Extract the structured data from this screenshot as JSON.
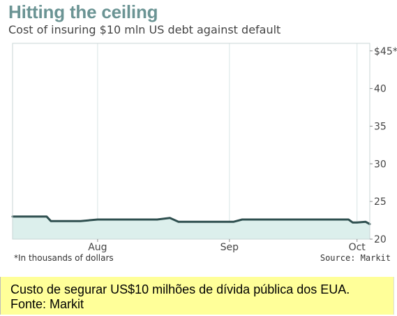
{
  "header": {
    "title": "Hitting the ceiling",
    "subtitle": "Cost of insuring $10 mln US debt against default"
  },
  "footer": {
    "footnote": "*In thousands of dollars",
    "source": "Source: Markit"
  },
  "caption": {
    "line1": "Custo de segurar US$10 milhões de dívida pública dos EUA.",
    "line2": "Fonte: Markit"
  },
  "colors": {
    "line": "#2e4f4f",
    "fill": "#dcefec",
    "title": "#6b9494",
    "grid": "#d8e4e4",
    "caption_bg": "#ffff99"
  },
  "chart_data": {
    "type": "area",
    "title": "Hitting the ceiling",
    "subtitle": "Cost of insuring $10 mln US debt against default",
    "ylim": [
      20,
      46
    ],
    "yticks": [
      {
        "value": 45,
        "label": "$45*"
      },
      {
        "value": 40,
        "label": "40"
      },
      {
        "value": 35,
        "label": "35"
      },
      {
        "value": 30,
        "label": "30"
      },
      {
        "value": 25,
        "label": "25"
      },
      {
        "value": 20,
        "label": "20"
      }
    ],
    "xlim": [
      "2011-07-12",
      "2011-10-04"
    ],
    "xticks": [
      {
        "date": "2011-08-01",
        "label": "Aug"
      },
      {
        "date": "2011-09-01",
        "label": "Sep"
      },
      {
        "date": "2011-10-01",
        "label": "Oct"
      }
    ],
    "grid": true,
    "series": [
      {
        "points": [
          {
            "x": "2011-07-12",
            "y": 23.0
          },
          {
            "x": "2011-07-15",
            "y": 23.0
          },
          {
            "x": "2011-07-20",
            "y": 23.0
          },
          {
            "x": "2011-07-21",
            "y": 22.4
          },
          {
            "x": "2011-07-28",
            "y": 22.4
          },
          {
            "x": "2011-08-01",
            "y": 22.6
          },
          {
            "x": "2011-08-11",
            "y": 22.6
          },
          {
            "x": "2011-08-15",
            "y": 22.6
          },
          {
            "x": "2011-08-18",
            "y": 22.8
          },
          {
            "x": "2011-08-20",
            "y": 22.3
          },
          {
            "x": "2011-08-25",
            "y": 22.3
          },
          {
            "x": "2011-08-31",
            "y": 22.3
          },
          {
            "x": "2011-09-02",
            "y": 22.3
          },
          {
            "x": "2011-09-04",
            "y": 22.6
          },
          {
            "x": "2011-09-12",
            "y": 22.6
          },
          {
            "x": "2011-09-20",
            "y": 22.6
          },
          {
            "x": "2011-09-28",
            "y": 22.6
          },
          {
            "x": "2011-09-29",
            "y": 22.6
          },
          {
            "x": "2011-09-30",
            "y": 22.2
          },
          {
            "x": "2011-10-01",
            "y": 22.2
          },
          {
            "x": "2011-10-03",
            "y": 22.3
          },
          {
            "x": "2011-10-04",
            "y": 22.0
          }
        ]
      }
    ]
  }
}
